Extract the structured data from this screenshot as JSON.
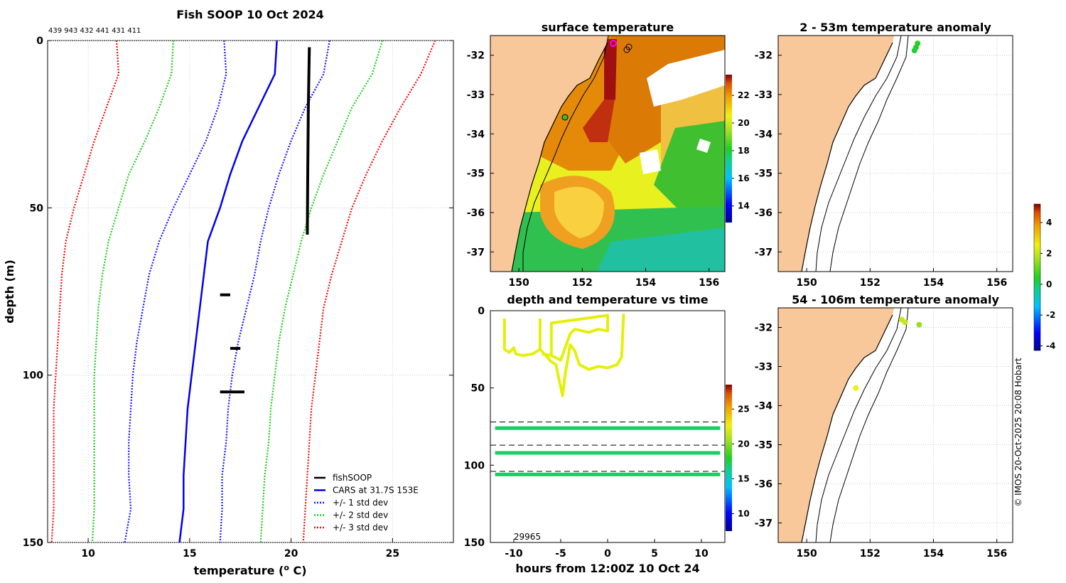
{
  "colors": {
    "land": "#f8c89a",
    "cars": "#0000ee",
    "std1": "#1a1aff",
    "std2": "#22cc22",
    "std3": "#ee1111",
    "soop": "#000000",
    "tsline": "#e4f00a",
    "tsband": "#22c040"
  },
  "credit": "© IMOS 20-Oct-2025 20:08 Hobart",
  "chart_data": [
    {
      "id": "profile",
      "type": "line",
      "title": "Fish SOOP 10 Oct 2024",
      "subtitle": "439 943 432 441 431 411",
      "xlabel": "temperature (",
      "xlabel_sup": "o",
      "xlabel_end": " C)",
      "ylabel": "depth (m)",
      "xlim": [
        8,
        28
      ],
      "ylim": [
        150,
        0
      ],
      "xticks": [
        10,
        15,
        20,
        25
      ],
      "yticks": [
        0,
        50,
        100,
        150
      ],
      "depth": [
        0,
        10,
        20,
        30,
        40,
        50,
        60,
        70,
        80,
        90,
        100,
        110,
        120,
        130,
        140,
        150
      ],
      "series": [
        {
          "name": "CARS at 31.7S 153E",
          "values": [
            19.3,
            19.2,
            18.4,
            17.6,
            17.0,
            16.5,
            15.9,
            15.7,
            15.5,
            15.3,
            15.1,
            14.9,
            14.8,
            14.7,
            14.7,
            14.5
          ]
        },
        {
          "name": "+/- 1 std dev",
          "values": [
            16.7,
            16.8,
            16.4,
            15.8,
            15.0,
            14.2,
            13.5,
            13.0,
            12.7,
            12.4,
            12.2,
            12.1,
            12.0,
            12.0,
            12.1,
            11.8
          ]
        },
        {
          "name": "+/- 1 std dev",
          "values": [
            21.9,
            21.6,
            20.7,
            20.0,
            19.4,
            18.9,
            18.5,
            18.2,
            17.8,
            17.4,
            17.1,
            16.9,
            16.8,
            16.6,
            16.6,
            16.5
          ]
        },
        {
          "name": "+/- 2 std dev",
          "values": [
            14.2,
            14.1,
            13.5,
            12.8,
            12.0,
            11.5,
            11.0,
            10.7,
            10.5,
            10.4,
            10.3,
            10.3,
            10.3,
            10.3,
            10.3,
            10.2
          ]
        },
        {
          "name": "+/- 2 std dev",
          "values": [
            24.5,
            24.0,
            23.0,
            22.3,
            21.6,
            21.0,
            20.5,
            20.1,
            19.7,
            19.4,
            19.2,
            19.0,
            18.9,
            18.7,
            18.6,
            18.5
          ]
        },
        {
          "name": "+/- 3 std dev",
          "values": [
            11.4,
            11.5,
            10.9,
            10.3,
            9.8,
            9.3,
            8.9,
            8.7,
            8.6,
            8.5,
            8.4,
            8.3,
            8.3,
            8.3,
            8.3,
            8.2
          ]
        },
        {
          "name": "+/- 3 std dev",
          "values": [
            27.1,
            26.4,
            25.4,
            24.5,
            23.7,
            23.0,
            22.5,
            22.0,
            21.6,
            21.4,
            21.2,
            21.0,
            20.9,
            20.8,
            20.7,
            20.6
          ]
        }
      ],
      "soop": [
        {
          "t": 20.9,
          "d": 2
        },
        {
          "t": 20.85,
          "d": 20
        },
        {
          "t": 20.82,
          "d": 40
        },
        {
          "t": 20.8,
          "d": 58
        }
      ],
      "soop_blobs": [
        {
          "t0": 16.5,
          "t1": 17.0,
          "d": 76
        },
        {
          "t0": 17.0,
          "t1": 17.5,
          "d": 92
        },
        {
          "t0": 16.5,
          "t1": 17.7,
          "d": 105
        }
      ],
      "legend": [
        {
          "label": "fishSOOP",
          "style": "soop"
        },
        {
          "label": "CARS at 31.7S 153E",
          "style": "cars"
        },
        {
          "label": "+/- 1 std dev",
          "style": "std1"
        },
        {
          "label": "+/- 2 std dev",
          "style": "std2"
        },
        {
          "label": "+/- 3 std dev",
          "style": "std3"
        }
      ]
    },
    {
      "id": "sst",
      "type": "heatmap",
      "title": "surface temperature",
      "xlim": [
        149.1,
        156.5
      ],
      "ylim": [
        -37.5,
        -31.5
      ],
      "xticks": [
        150,
        152,
        154,
        156
      ],
      "yticks": [
        -32,
        -33,
        -34,
        -35,
        -36,
        -37
      ],
      "colorbar": {
        "ticks": [
          14,
          16,
          18,
          20,
          22
        ],
        "range": [
          12.8,
          23.5
        ]
      }
    },
    {
      "id": "depthtime",
      "type": "line",
      "title": "depth and temperature vs time",
      "xlabel": "hours from 12:00Z 10 Oct 24",
      "xlim": [
        -12.5,
        12.5
      ],
      "ylim": [
        150,
        0
      ],
      "xticks": [
        -10,
        -5,
        0,
        5,
        10
      ],
      "yticks": [
        0,
        50,
        100,
        150
      ],
      "dashed_depths": [
        72,
        87,
        104
      ],
      "bands": [
        {
          "depth": 76,
          "temp": 17
        },
        {
          "depth": 92,
          "temp": 17
        },
        {
          "depth": 106,
          "temp": 17
        }
      ],
      "annotation": "29965",
      "colorbar": {
        "ticks": [
          10,
          15,
          20,
          25
        ],
        "range": [
          7.5,
          28.5
        ]
      }
    },
    {
      "id": "anom1",
      "type": "scatter",
      "title": "2 - 53m temperature anomaly",
      "xlim": [
        149.1,
        156.5
      ],
      "ylim": [
        -37.5,
        -31.5
      ],
      "xticks": [
        150,
        152,
        154,
        156
      ],
      "yticks": [
        -32,
        -33,
        -34,
        -35,
        -36,
        -37
      ],
      "points": [
        {
          "lon": 153.5,
          "lat": -31.7,
          "anom": 0.5
        },
        {
          "lon": 153.45,
          "lat": -31.8,
          "anom": 0.4
        },
        {
          "lon": 153.4,
          "lat": -31.88,
          "anom": 0.3
        }
      ]
    },
    {
      "id": "anom2",
      "type": "scatter",
      "title": "54 - 106m temperature anomaly",
      "xlim": [
        149.1,
        156.5
      ],
      "ylim": [
        -37.5,
        -31.5
      ],
      "xticks": [
        150,
        152,
        154,
        156
      ],
      "yticks": [
        -32,
        -33,
        -34,
        -35,
        -36,
        -37
      ],
      "points": [
        {
          "lon": 153.0,
          "lat": -31.8,
          "anom": 2.0
        },
        {
          "lon": 153.1,
          "lat": -31.87,
          "anom": 2.0
        },
        {
          "lon": 153.55,
          "lat": -31.93,
          "anom": 1.5
        },
        {
          "lon": 151.55,
          "lat": -33.55,
          "anom": 2.5
        }
      ]
    },
    {
      "id": "anomcbar",
      "type": "heatmap",
      "title": "",
      "ticks": [
        -4,
        -2,
        0,
        2,
        4
      ],
      "range": [
        -4.3,
        5.2
      ]
    }
  ]
}
